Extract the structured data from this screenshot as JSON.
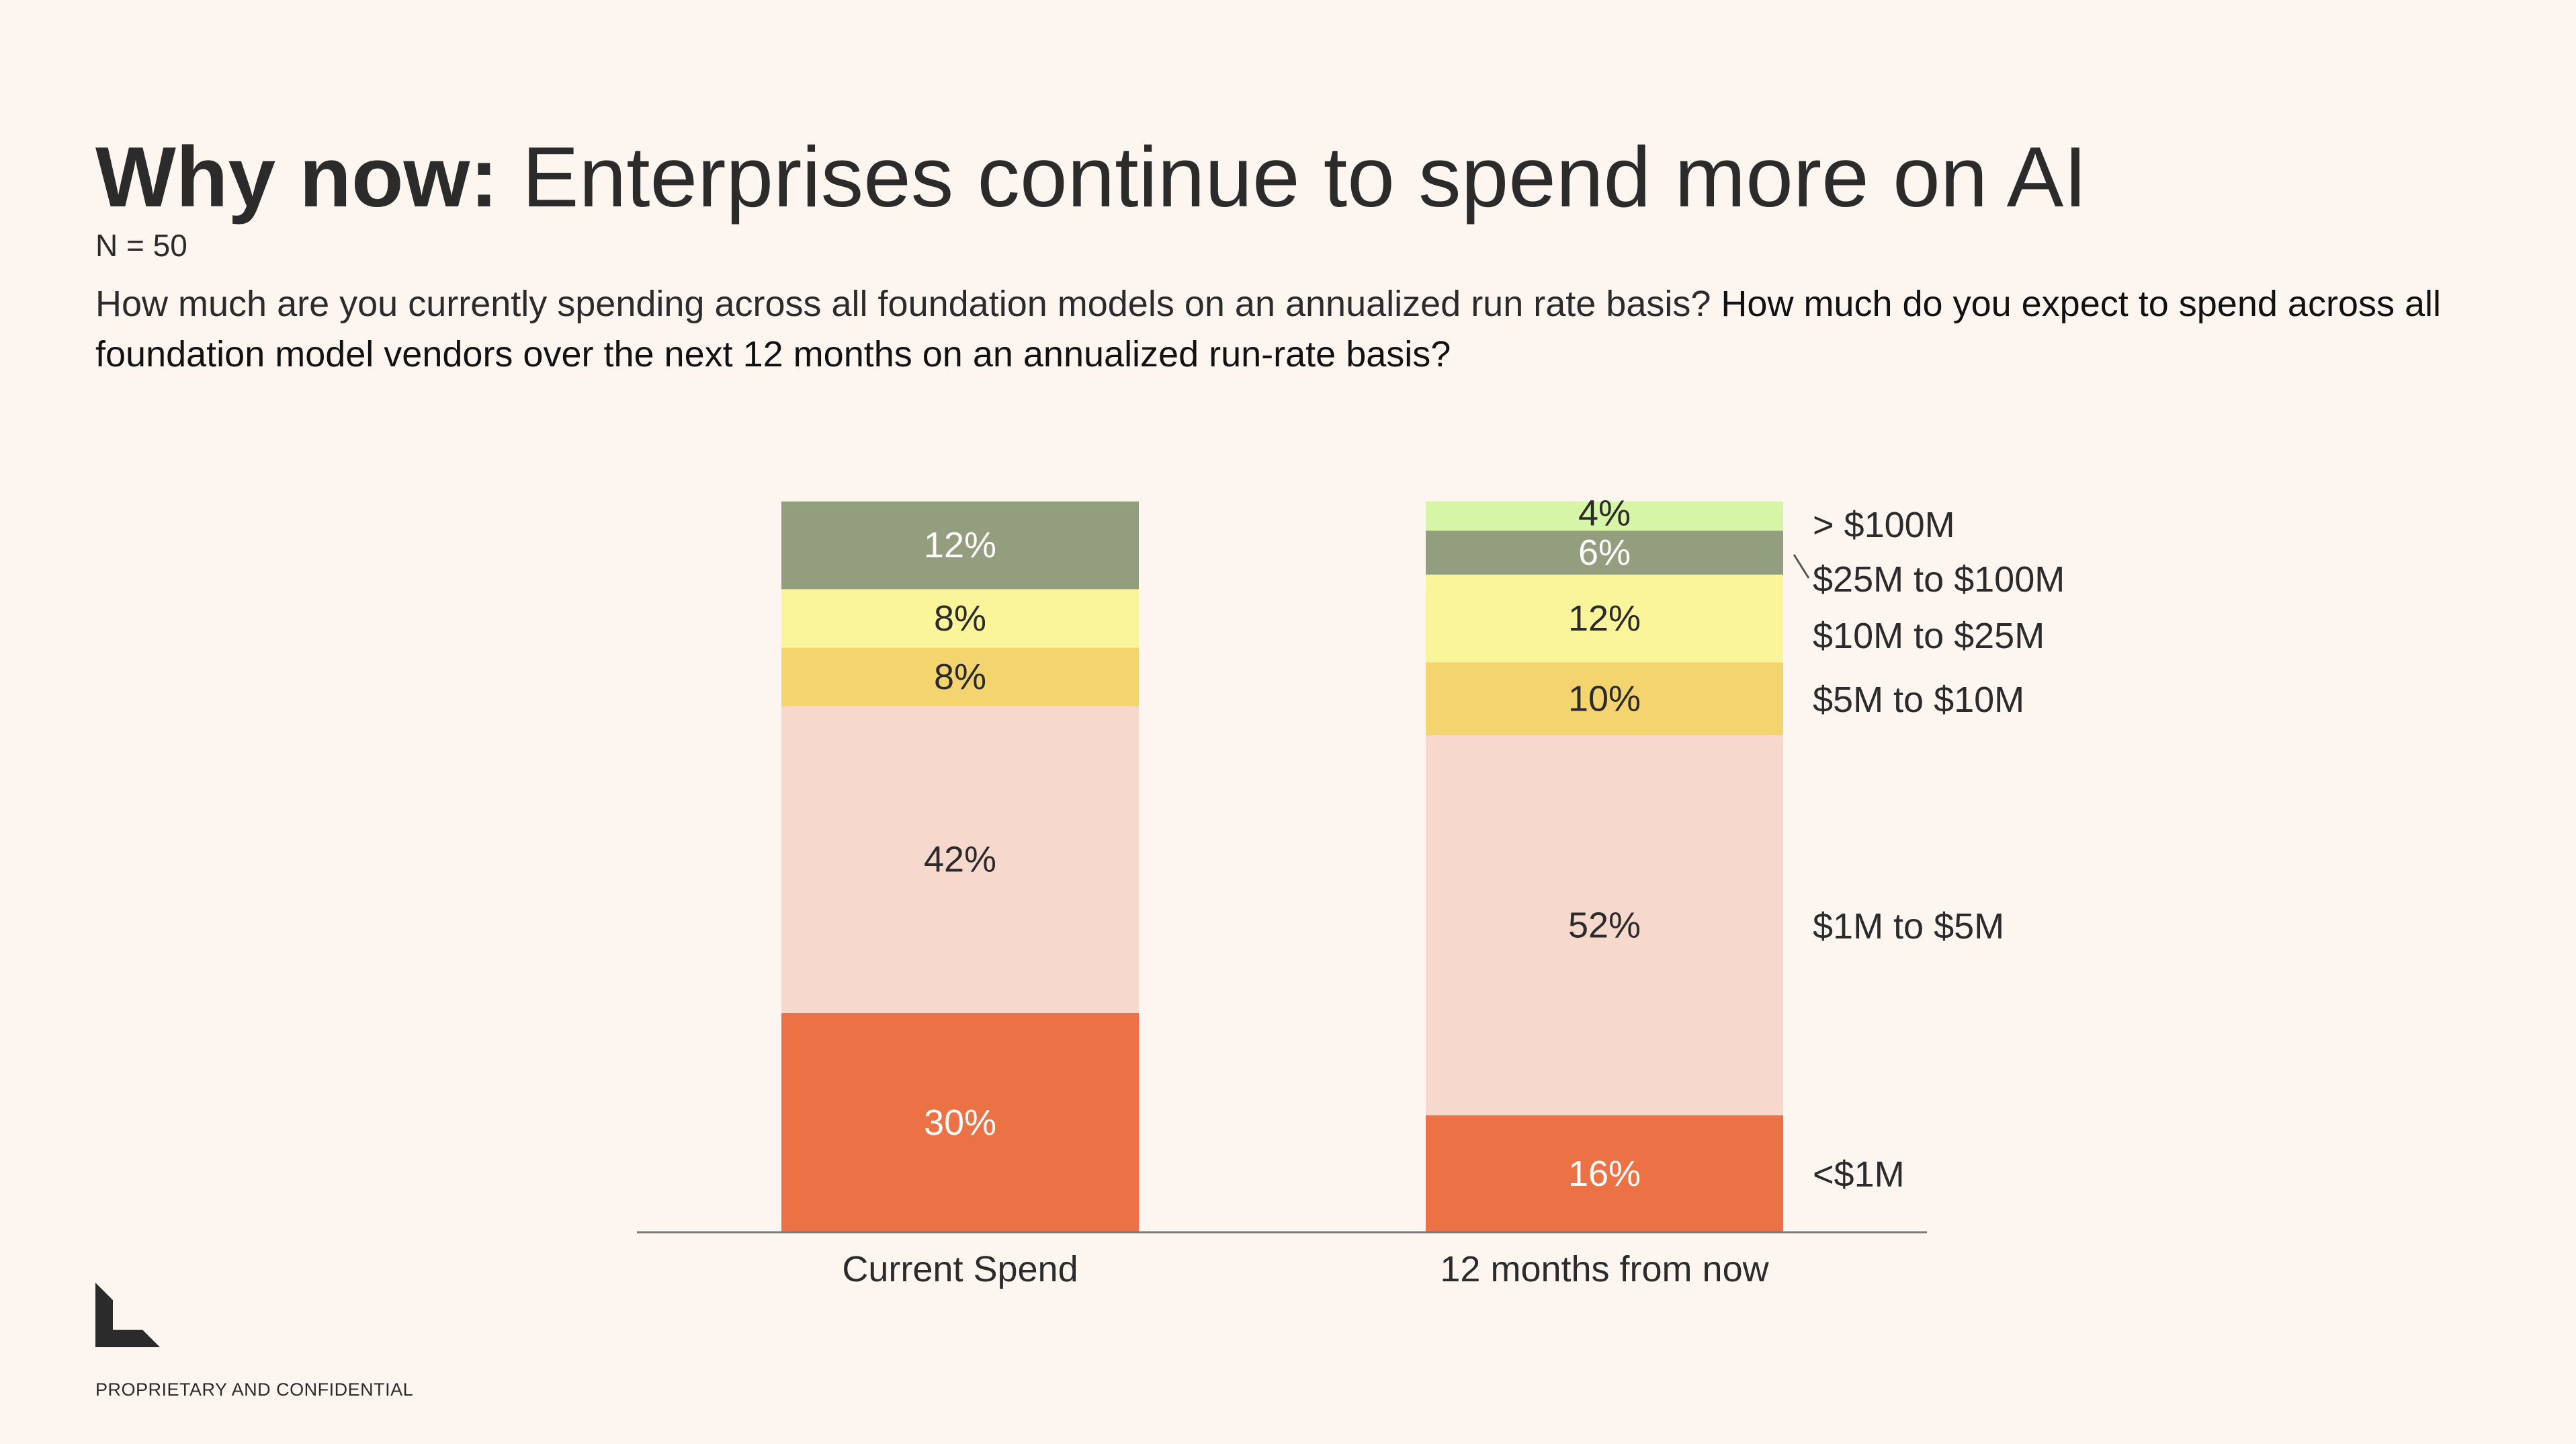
{
  "slide": {
    "title_bold": "Why now:",
    "title_rest": " Enterprises continue to spend more on AI",
    "n_label": "N = 50",
    "question_1": "How much are you currently spending across all foundation models on an annualized run rate basis?",
    "question_2": "How much do you expect to spend across all foundation model vendors over the next 12 months on an annualized run-rate basis?",
    "footer": "PROPRIETARY AND CONFIDENTIAL",
    "logo": "company-logo"
  },
  "colors": {
    "background": "#fdf6f0",
    "lt1m": "#ec7245",
    "m1to5": "#f6d8cd",
    "m5to10": "#f4d46e",
    "m10to25": "#faf49a",
    "m25to100": "#939e7f",
    "gt100": "#d7f5a6"
  },
  "chart_data": {
    "type": "bar",
    "stacked": true,
    "orientation": "vertical",
    "categories": [
      "Current Spend",
      "12 months from now"
    ],
    "series": [
      {
        "name": "<$1M",
        "values": [
          30,
          16
        ],
        "labels": [
          "30%",
          "16%"
        ],
        "color": "#ec7245",
        "label_color": "#ffffff"
      },
      {
        "name": "$1M to $5M",
        "values": [
          42,
          52
        ],
        "labels": [
          "42%",
          "52%"
        ],
        "color": "#f6d8cd",
        "label_color": "#2b2b2b"
      },
      {
        "name": "$5M to $10M",
        "values": [
          8,
          10
        ],
        "labels": [
          "8%",
          "10%"
        ],
        "color": "#f4d46e",
        "label_color": "#2b2b2b"
      },
      {
        "name": "$10M to $25M",
        "values": [
          8,
          12
        ],
        "labels": [
          "8%",
          "12%"
        ],
        "color": "#faf49a",
        "label_color": "#2b2b2b"
      },
      {
        "name": "$25M to $100M",
        "values": [
          12,
          6
        ],
        "labels": [
          "12%",
          "6%"
        ],
        "color": "#939e7f",
        "label_color": "#ffffff"
      },
      {
        "name": "> $100M",
        "values": [
          0,
          4
        ],
        "labels": [
          "",
          "4%"
        ],
        "color": "#d7f5a6",
        "label_color": "#2b2b2b"
      }
    ],
    "ylim": [
      0,
      100
    ],
    "legend": "right-of-last-bar",
    "grid": false
  }
}
